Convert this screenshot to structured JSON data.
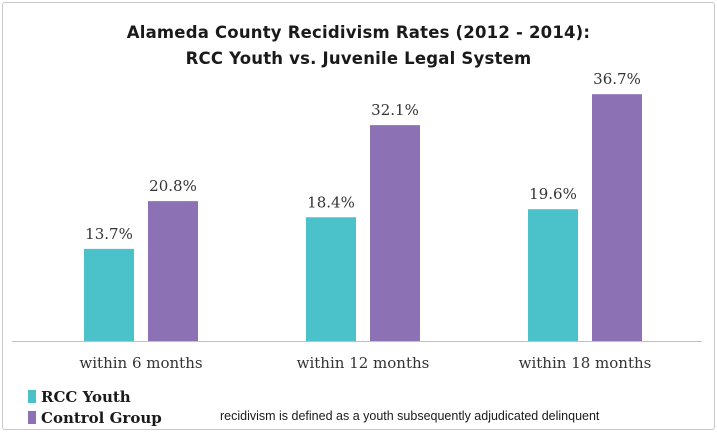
{
  "chart_data": {
    "type": "bar",
    "title_line1": "Alameda County Recidivism Rates (2012 - 2014):",
    "title_line2": "RCC Youth vs. Juvenile Legal System",
    "categories": [
      "within 6 months",
      "within 12 months",
      "within 18 months"
    ],
    "series": [
      {
        "name": "RCC Youth",
        "values": [
          13.7,
          18.4,
          19.6
        ],
        "labels": [
          "13.7%",
          "18.4%",
          "19.6%"
        ],
        "color": "#4bc2c9"
      },
      {
        "name": "Control Group",
        "values": [
          20.8,
          32.1,
          36.7
        ],
        "labels": [
          "20.8%",
          "32.1%",
          "36.7%"
        ],
        "color": "#8c71b5"
      }
    ],
    "ylim": [
      0,
      40
    ],
    "grid": false,
    "legend_position": "bottom-left",
    "axis_color": "#c0c0c0"
  },
  "footnote": "recidivism is defined as a youth subsequently adjudicated delinquent"
}
